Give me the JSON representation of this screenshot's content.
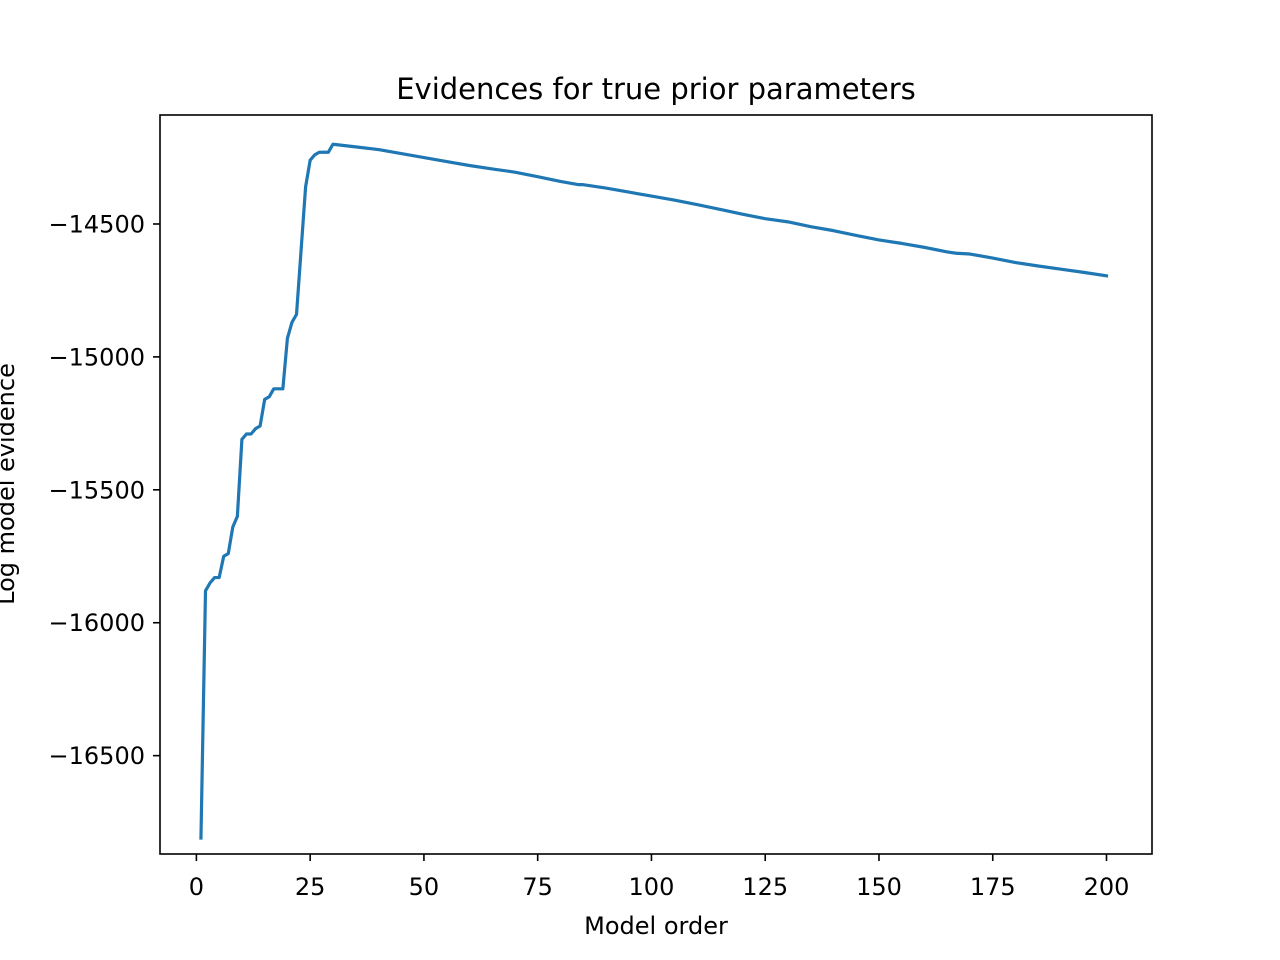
{
  "chart_data": {
    "type": "line",
    "title": "Evidences for true prior parameters",
    "xlabel": "Model order",
    "ylabel": "Log model evidence",
    "xlim": [
      -8,
      210
    ],
    "ylim": [
      -16870,
      -14090
    ],
    "xticks": [
      0,
      25,
      50,
      75,
      100,
      125,
      150,
      175,
      200
    ],
    "yticks": [
      -14500,
      -15000,
      -15500,
      -16000,
      -16500
    ],
    "xtick_labels": [
      "0",
      "25",
      "50",
      "75",
      "100",
      "125",
      "150",
      "175",
      "200"
    ],
    "ytick_labels": [
      "−14500",
      "−15000",
      "−15500",
      "−16000",
      "−16500"
    ],
    "grid": false,
    "series": [
      {
        "color": "#1f77b4",
        "x": [
          1,
          2,
          3,
          4,
          5,
          6,
          7,
          8,
          9,
          10,
          11,
          12,
          13,
          14,
          15,
          16,
          17,
          18,
          19,
          20,
          21,
          22,
          23,
          24,
          25,
          26,
          27,
          28,
          29,
          30,
          35,
          40,
          45,
          50,
          55,
          60,
          65,
          70,
          75,
          80,
          84,
          85,
          90,
          95,
          100,
          105,
          110,
          115,
          120,
          125,
          130,
          135,
          140,
          145,
          150,
          155,
          160,
          165,
          167,
          170,
          175,
          180,
          185,
          190,
          195,
          200
        ],
        "y": [
          -16810,
          -15880,
          -15850,
          -15830,
          -15830,
          -15750,
          -15740,
          -15640,
          -15600,
          -15310,
          -15290,
          -15290,
          -15270,
          -15260,
          -15160,
          -15150,
          -15120,
          -15120,
          -15120,
          -14930,
          -14870,
          -14840,
          -14600,
          -14360,
          -14260,
          -14240,
          -14230,
          -14230,
          -14230,
          -14200,
          -14210,
          -14220,
          -14235,
          -14250,
          -14265,
          -14280,
          -14293,
          -14305,
          -14322,
          -14340,
          -14352,
          -14352,
          -14365,
          -14380,
          -14395,
          -14410,
          -14427,
          -14445,
          -14463,
          -14480,
          -14492,
          -14510,
          -14525,
          -14543,
          -14560,
          -14573,
          -14588,
          -14605,
          -14610,
          -14613,
          -14628,
          -14645,
          -14658,
          -14670,
          -14682,
          -14695
        ]
      }
    ]
  }
}
